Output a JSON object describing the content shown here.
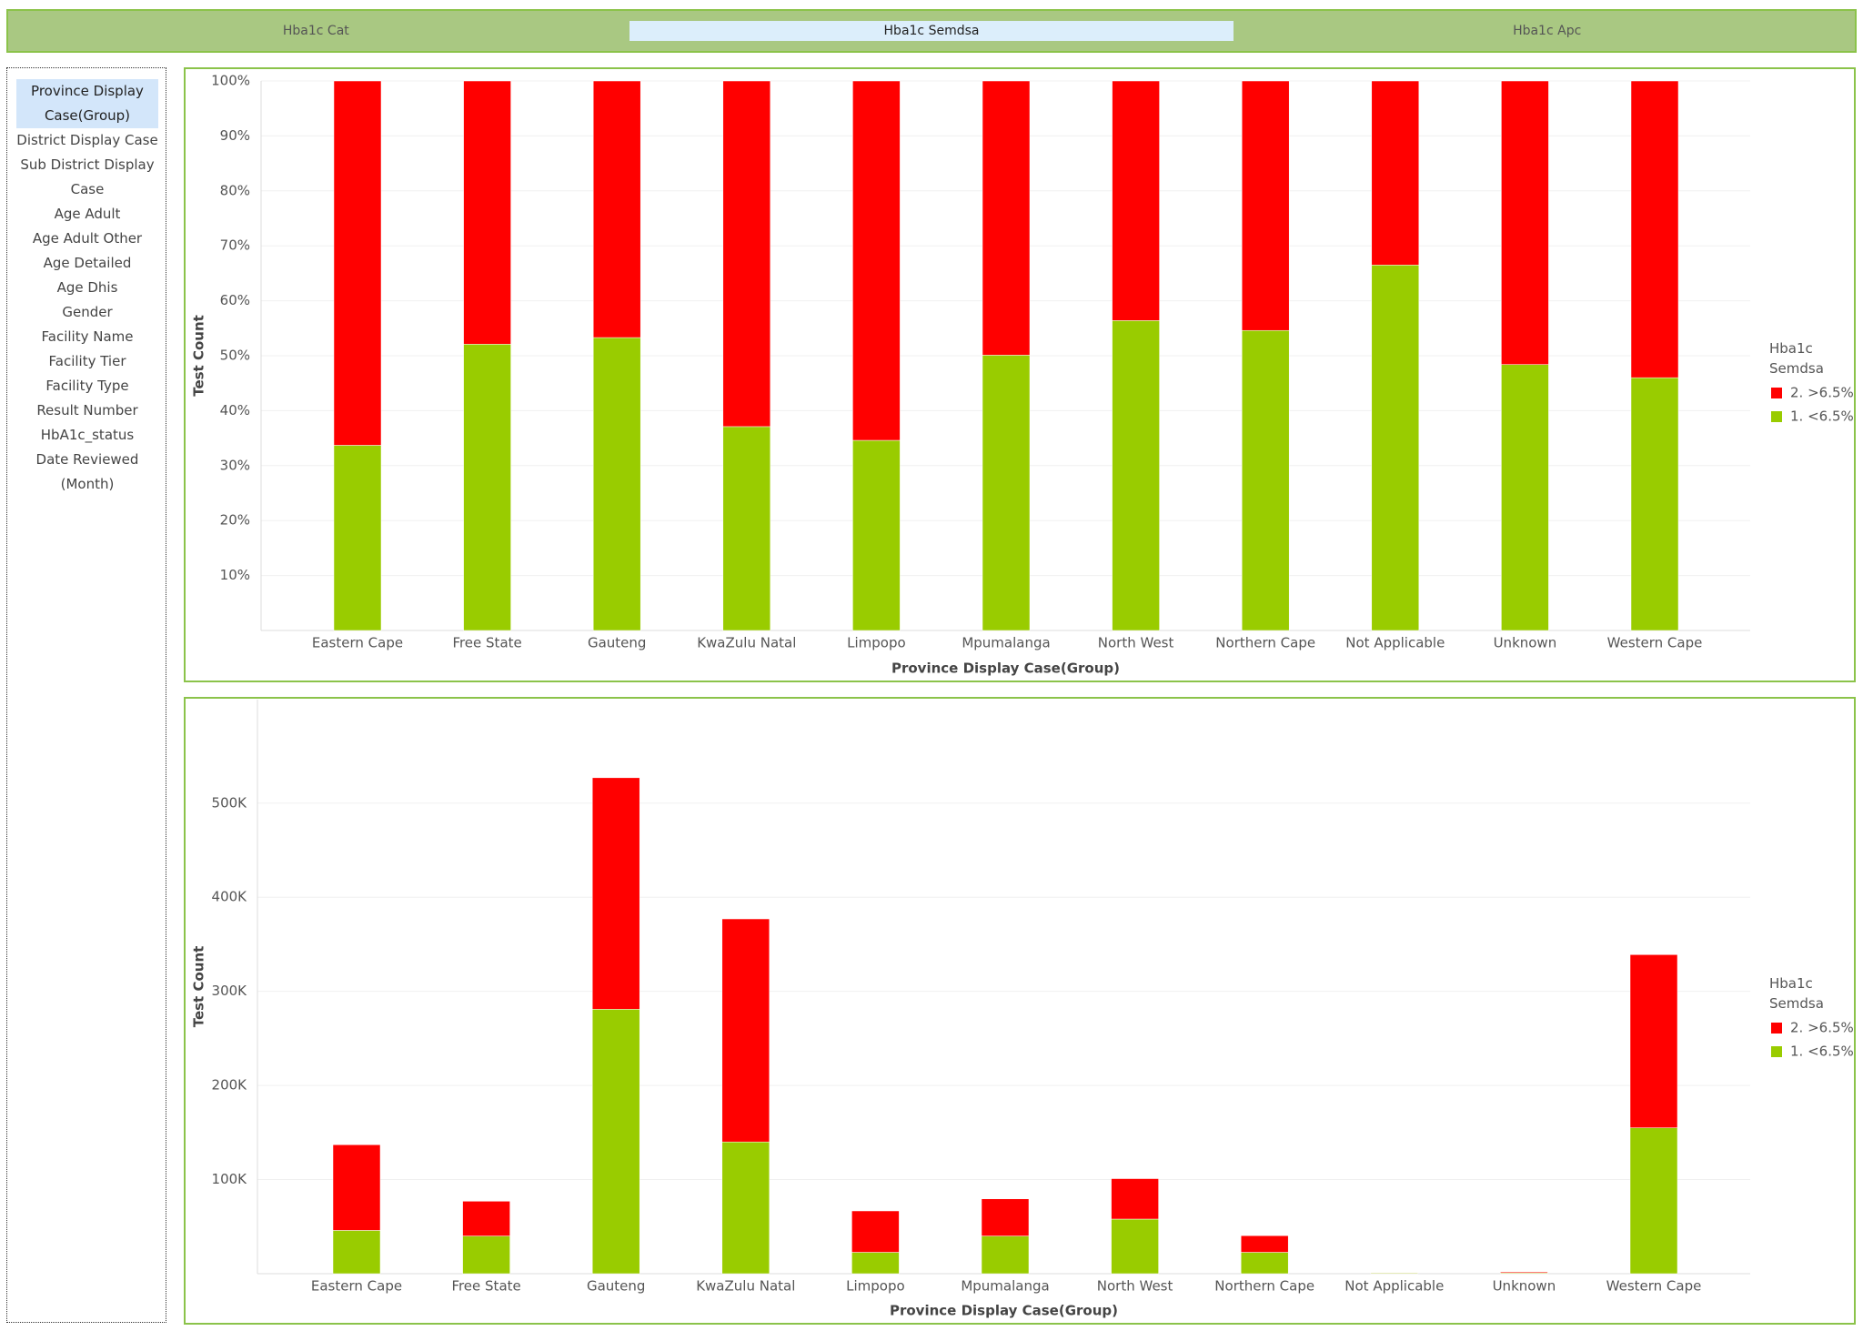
{
  "tabs": [
    "Hba1c Cat",
    "Hba1c Semdsa",
    "Hba1c Apc"
  ],
  "selected_tab": 1,
  "sidebar": [
    "Province Display Case(Group)",
    "District Display Case",
    "Sub District Display Case",
    "Age Adult",
    "Age Adult Other",
    "Age Detailed",
    "Age Dhis",
    "Gender",
    "Facility Name",
    "Facility Tier",
    "Facility Type",
    "Result Number",
    "HbA1c_status",
    "Date Reviewed (Month)"
  ],
  "selected_sidebar": 0,
  "chart_data": [
    {
      "type": "stacked_bar",
      "y_label": "Test Count",
      "x_label": "Province Display Case(Group)",
      "legend_title": "Hba1c Semdsa",
      "categories": [
        "Eastern Cape",
        "Free State",
        "Gauteng",
        "KwaZulu Natal",
        "Limpopo",
        "Mpumalanga",
        "North West",
        "Northern Cape",
        "Not Applicable",
        "Unknown",
        "Western Cape"
      ],
      "series": [
        {
          "name": "1. <6.5%",
          "color": "#99cc00",
          "values": [
            33.7,
            52.1,
            53.3,
            37.1,
            34.6,
            50.1,
            56.4,
            54.6,
            66.5,
            48.4,
            46.0
          ]
        },
        {
          "name": "2. >6.5%",
          "color": "#ff0000",
          "values": [
            66.3,
            47.9,
            46.7,
            62.9,
            65.4,
            49.9,
            43.6,
            45.4,
            33.5,
            51.6,
            54.0
          ]
        }
      ],
      "ylim": [
        0,
        100
      ],
      "yticks": [
        {
          "value": 10,
          "label": "10%"
        },
        {
          "value": 20,
          "label": "20%"
        },
        {
          "value": 30,
          "label": "30%"
        },
        {
          "value": 40,
          "label": "40%"
        },
        {
          "value": 50,
          "label": "50%"
        },
        {
          "value": 60,
          "label": "60%"
        },
        {
          "value": 70,
          "label": "70%"
        },
        {
          "value": 80,
          "label": "80%"
        },
        {
          "value": 90,
          "label": "90%"
        },
        {
          "value": 100,
          "label": "100%"
        }
      ],
      "grid": true
    },
    {
      "type": "stacked_bar",
      "y_label": "Test Count",
      "x_label": "Province Display Case(Group)",
      "legend_title": "Hba1c Semdsa",
      "categories": [
        "Eastern Cape",
        "Free State",
        "Gauteng",
        "KwaZulu Natal",
        "Limpopo",
        "Mpumalanga",
        "North West",
        "Northern Cape",
        "Not Applicable",
        "Unknown",
        "Western Cape"
      ],
      "series": [
        {
          "name": "1. <6.5%",
          "color": "#99cc00",
          "values": [
            46000,
            40000,
            281000,
            140000,
            22700,
            40000,
            58000,
            22700,
            800,
            900,
            155000
          ]
        },
        {
          "name": "2. >6.5%",
          "color": "#ff0000",
          "values": [
            91000,
            37000,
            246000,
            237000,
            44000,
            39500,
            43000,
            17700,
            400,
            1000,
            184000
          ]
        }
      ],
      "ylim": [
        0,
        610000
      ],
      "yticks": [
        {
          "value": 100000,
          "label": "100K"
        },
        {
          "value": 200000,
          "label": "200K"
        },
        {
          "value": 300000,
          "label": "300K"
        },
        {
          "value": 400000,
          "label": "400K"
        },
        {
          "value": 500000,
          "label": "500K"
        }
      ],
      "grid": true
    }
  ]
}
